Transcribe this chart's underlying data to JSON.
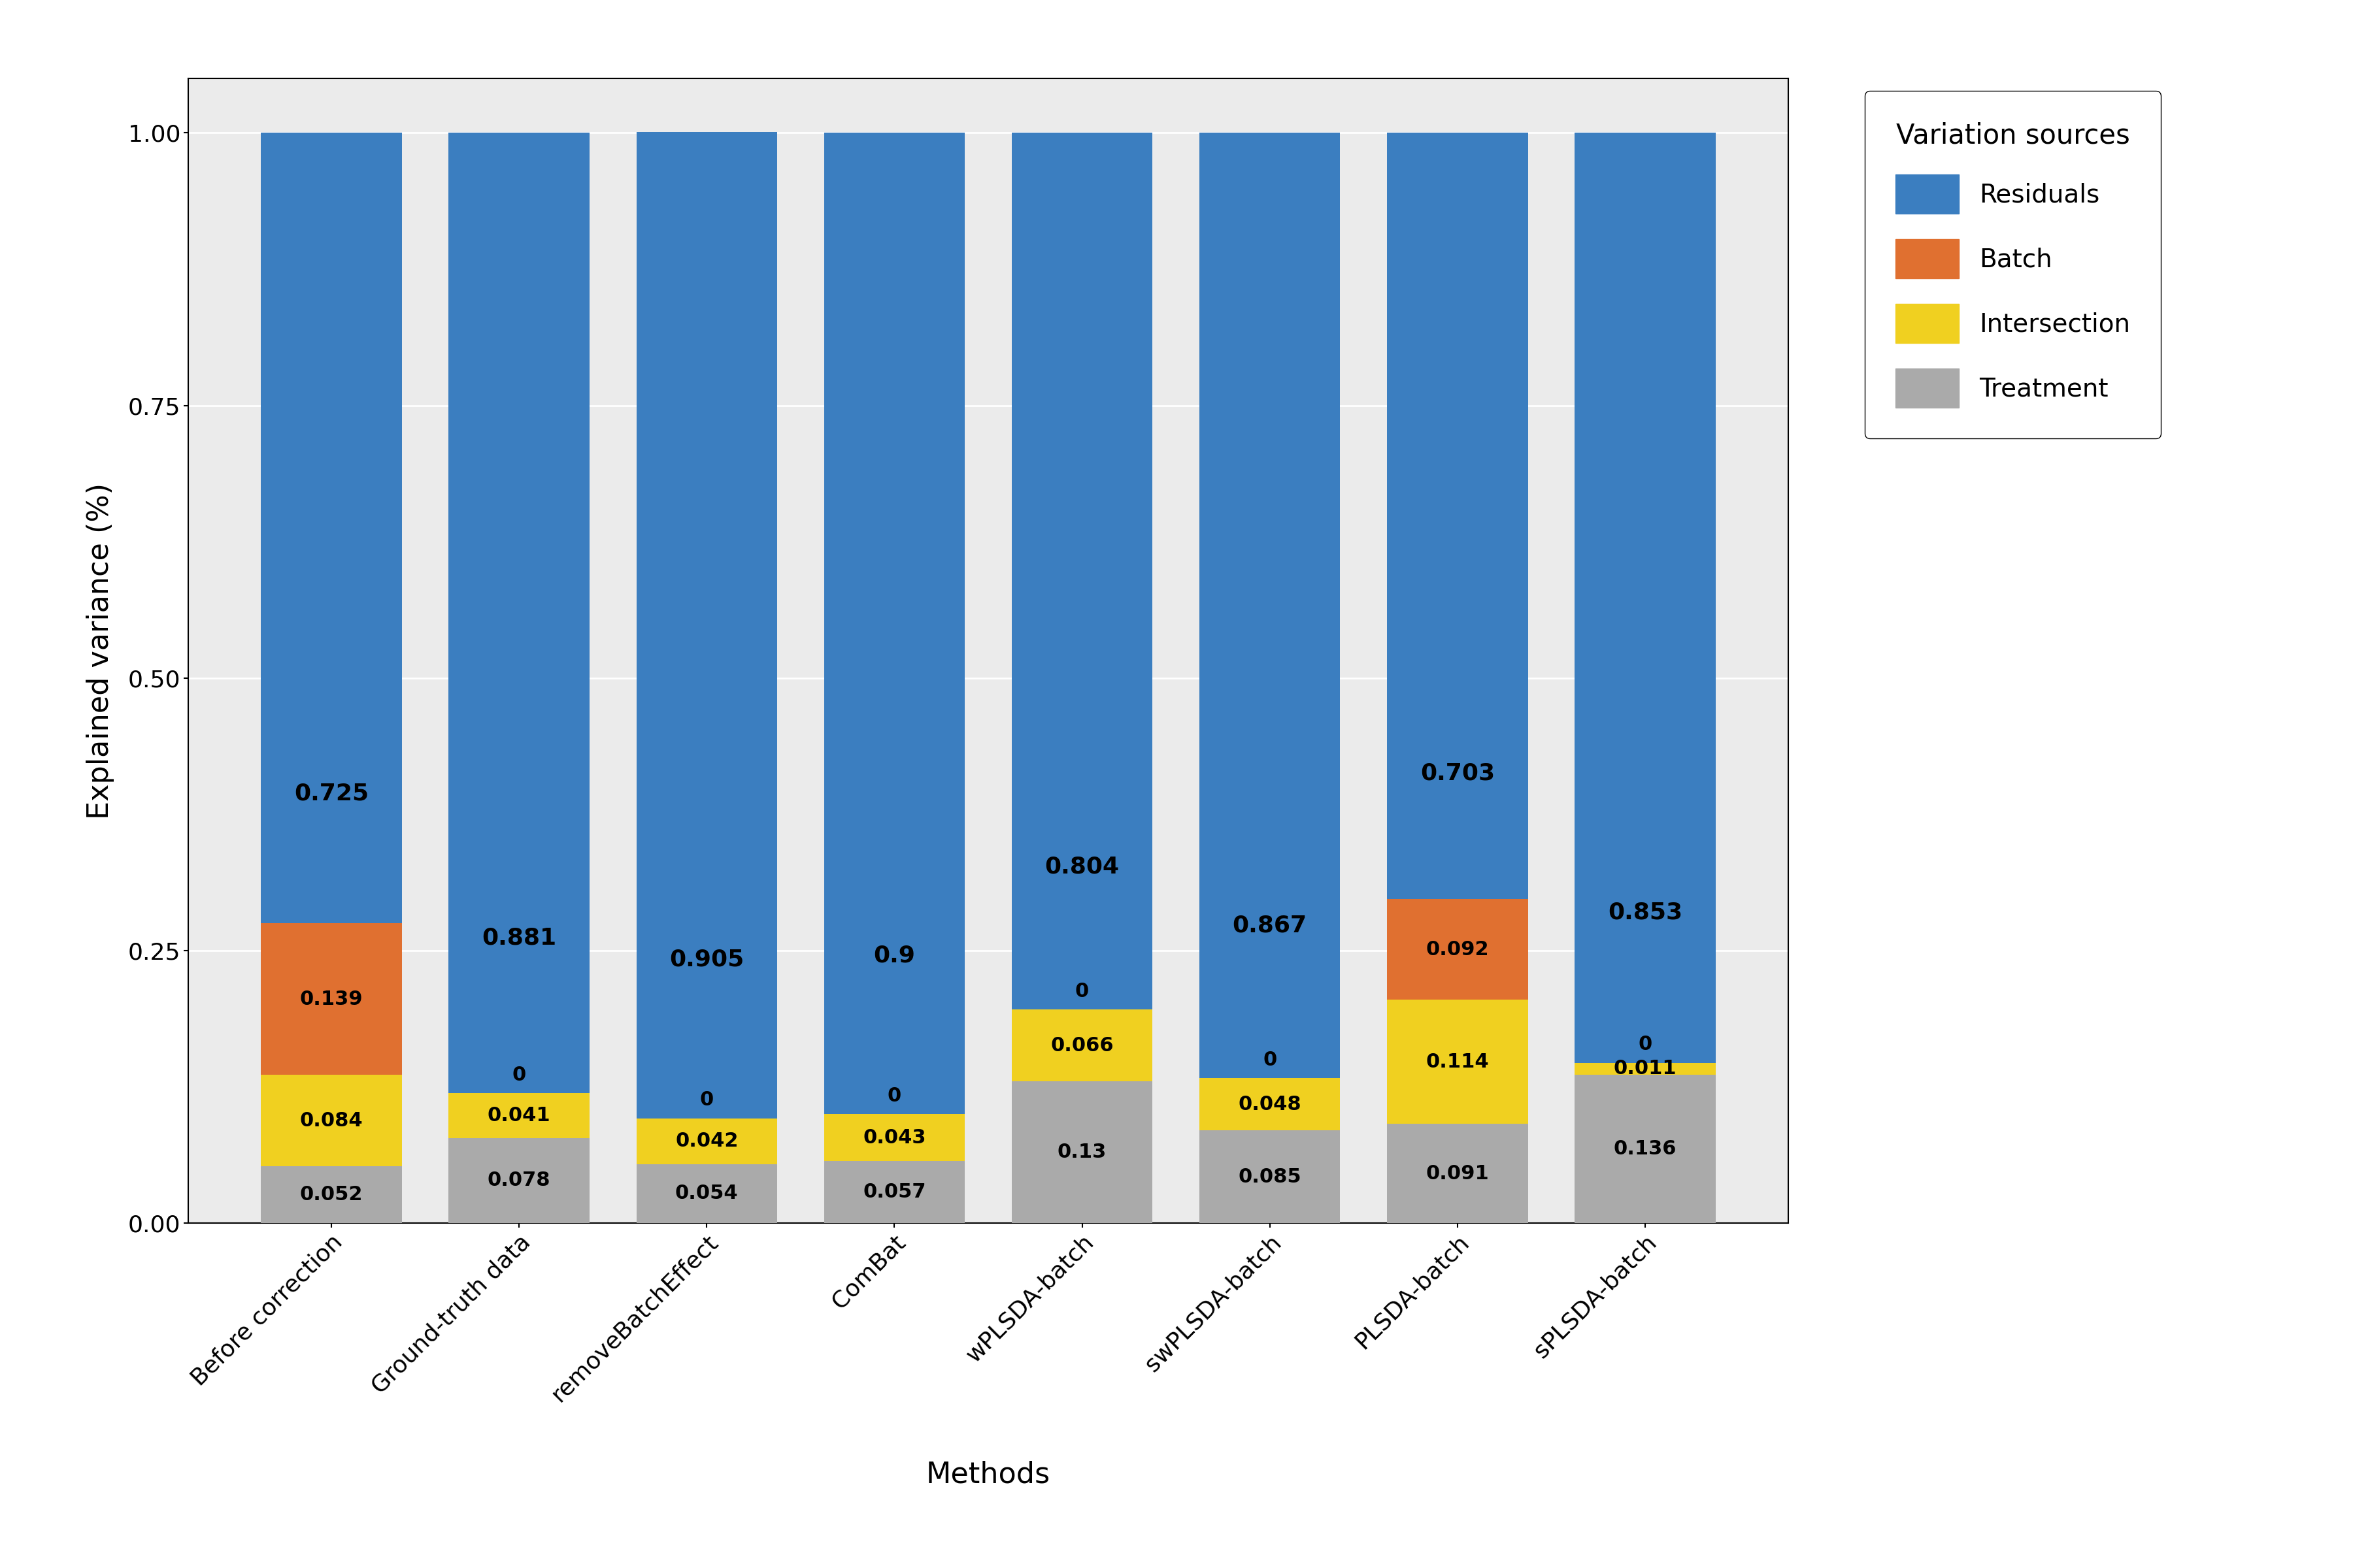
{
  "categories": [
    "Before correction",
    "Ground-truth data",
    "removeBatchEffect",
    "ComBat",
    "wPLSDA-batch",
    "swPLSDA-batch",
    "PLSDA-batch",
    "sPLSDA-batch"
  ],
  "treatment": [
    0.052,
    0.078,
    0.054,
    0.057,
    0.13,
    0.085,
    0.091,
    0.136
  ],
  "intersection": [
    0.084,
    0.041,
    0.042,
    0.043,
    0.066,
    0.048,
    0.114,
    0.011
  ],
  "batch": [
    0.139,
    0.0,
    0.0,
    0.0,
    0.0,
    0.0,
    0.092,
    0.0
  ],
  "residuals": [
    0.725,
    0.881,
    0.905,
    0.9,
    0.804,
    0.867,
    0.703,
    0.853
  ],
  "colors": {
    "residuals": "#3B7EC0",
    "batch": "#E07030",
    "intersection": "#F0D020",
    "treatment": "#AAAAAA"
  },
  "ylabel": "Explained variance (%)",
  "xlabel": "Methods",
  "legend_title": "Variation sources",
  "legend_labels": [
    "Residuals",
    "Batch",
    "Intersection",
    "Treatment"
  ],
  "ylim": [
    0,
    1.05
  ],
  "yticks": [
    0.0,
    0.25,
    0.5,
    0.75,
    1.0
  ],
  "ytick_labels": [
    "0.00",
    "0.25",
    "0.50",
    "0.75",
    "1.00"
  ],
  "background_color": "#FFFFFF",
  "panel_color": "#EBEBEB",
  "grid_color": "#FFFFFF",
  "label_fontsize": 32,
  "tick_fontsize": 26,
  "legend_fontsize": 28,
  "legend_title_fontsize": 30,
  "value_fontsize_small": 22,
  "value_fontsize_large": 26
}
